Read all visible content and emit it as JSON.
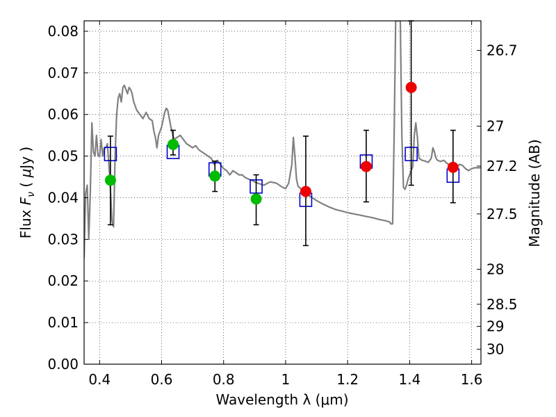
{
  "chart_data": {
    "type": "scatter",
    "xlabel": "Wavelength  λ (μm)",
    "ylabel": "Flux  F_ν  ( μJy )",
    "ylabel_parts": {
      "prefix": "Flux  ",
      "symbol": "F",
      "subscript": "ν",
      "open": "  (  ",
      "unit_mu": "μ",
      "unit_rest": "Jy )"
    },
    "y2label": "Magnitude (AB)",
    "xlim": [
      0.35,
      1.63
    ],
    "ylim": [
      0.0,
      0.0825
    ],
    "grid": true,
    "x_ticks": [
      0.4,
      0.6,
      0.8,
      1.0,
      1.2,
      1.4,
      1.6
    ],
    "x_tick_labels": [
      "0.4",
      "0.6",
      "0.8",
      "1",
      "1.2",
      "1.4",
      "1.6"
    ],
    "y_ticks": [
      0.0,
      0.01,
      0.02,
      0.03,
      0.04,
      0.05,
      0.06,
      0.07,
      0.08
    ],
    "y_tick_labels": [
      "0.00",
      "0.01",
      "0.02",
      "0.03",
      "0.04",
      "0.05",
      "0.06",
      "0.07",
      "0.08"
    ],
    "y2_ticks": [
      {
        "label": "26.7",
        "flux": 0.0754
      },
      {
        "label": "27",
        "flux": 0.0572
      },
      {
        "label": "27.2",
        "flux": 0.0476
      },
      {
        "label": "27.5",
        "flux": 0.0361
      },
      {
        "label": "28",
        "flux": 0.0228
      },
      {
        "label": "28.5",
        "flux": 0.0144
      },
      {
        "label": "29",
        "flux": 0.0091
      },
      {
        "label": "30",
        "flux": 0.0036
      }
    ],
    "colors": {
      "model": "#808080",
      "green": "#00bb00",
      "red": "#ee0000",
      "box": "#0000cc",
      "errorbar": "#000000"
    },
    "series": [
      {
        "kind": "model_spectrum",
        "points": [
          [
            0.35,
            0.0255
          ],
          [
            0.355,
            0.041
          ],
          [
            0.36,
            0.043
          ],
          [
            0.365,
            0.03
          ],
          [
            0.37,
            0.041
          ],
          [
            0.375,
            0.058
          ],
          [
            0.38,
            0.051
          ],
          [
            0.385,
            0.05
          ],
          [
            0.39,
            0.055
          ],
          [
            0.395,
            0.05
          ],
          [
            0.4,
            0.05
          ],
          [
            0.405,
            0.054
          ],
          [
            0.41,
            0.05
          ],
          [
            0.415,
            0.052
          ],
          [
            0.42,
            0.052
          ],
          [
            0.425,
            0.053
          ],
          [
            0.43,
            0.048
          ],
          [
            0.435,
            0.042
          ],
          [
            0.44,
            0.0345
          ],
          [
            0.445,
            0.033
          ],
          [
            0.45,
            0.05
          ],
          [
            0.455,
            0.06
          ],
          [
            0.46,
            0.064
          ],
          [
            0.465,
            0.065
          ],
          [
            0.47,
            0.063
          ],
          [
            0.475,
            0.0665
          ],
          [
            0.48,
            0.067
          ],
          [
            0.485,
            0.066
          ],
          [
            0.49,
            0.065
          ],
          [
            0.495,
            0.0665
          ],
          [
            0.5,
            0.066
          ],
          [
            0.505,
            0.065
          ],
          [
            0.51,
            0.063
          ],
          [
            0.52,
            0.061
          ],
          [
            0.53,
            0.06
          ],
          [
            0.54,
            0.059
          ],
          [
            0.55,
            0.0605
          ],
          [
            0.56,
            0.059
          ],
          [
            0.57,
            0.0585
          ],
          [
            0.575,
            0.056
          ],
          [
            0.58,
            0.0545
          ],
          [
            0.585,
            0.052
          ],
          [
            0.59,
            0.055
          ],
          [
            0.6,
            0.057
          ],
          [
            0.61,
            0.0605
          ],
          [
            0.615,
            0.0615
          ],
          [
            0.62,
            0.061
          ],
          [
            0.63,
            0.057
          ],
          [
            0.64,
            0.054
          ],
          [
            0.65,
            0.0545
          ],
          [
            0.66,
            0.055
          ],
          [
            0.67,
            0.054
          ],
          [
            0.68,
            0.053
          ],
          [
            0.69,
            0.0525
          ],
          [
            0.7,
            0.052
          ],
          [
            0.71,
            0.0525
          ],
          [
            0.72,
            0.0515
          ],
          [
            0.73,
            0.051
          ],
          [
            0.74,
            0.0505
          ],
          [
            0.75,
            0.05
          ],
          [
            0.76,
            0.0495
          ],
          [
            0.77,
            0.048
          ],
          [
            0.78,
            0.049
          ],
          [
            0.79,
            0.048
          ],
          [
            0.8,
            0.047
          ],
          [
            0.81,
            0.0465
          ],
          [
            0.82,
            0.0455
          ],
          [
            0.83,
            0.0465
          ],
          [
            0.84,
            0.046
          ],
          [
            0.85,
            0.0455
          ],
          [
            0.86,
            0.0455
          ],
          [
            0.87,
            0.0448
          ],
          [
            0.88,
            0.0445
          ],
          [
            0.89,
            0.0442
          ],
          [
            0.9,
            0.0438
          ],
          [
            0.91,
            0.0435
          ],
          [
            0.93,
            0.043
          ],
          [
            0.95,
            0.0438
          ],
          [
            0.97,
            0.0435
          ],
          [
            0.99,
            0.0425
          ],
          [
            1.0,
            0.0422
          ],
          [
            1.01,
            0.0435
          ],
          [
            1.02,
            0.048
          ],
          [
            1.025,
            0.0545
          ],
          [
            1.03,
            0.05
          ],
          [
            1.035,
            0.0445
          ],
          [
            1.04,
            0.0428
          ],
          [
            1.06,
            0.0413
          ],
          [
            1.08,
            0.0403
          ],
          [
            1.1,
            0.0393
          ],
          [
            1.12,
            0.0385
          ],
          [
            1.14,
            0.0378
          ],
          [
            1.16,
            0.0372
          ],
          [
            1.18,
            0.0368
          ],
          [
            1.2,
            0.0364
          ],
          [
            1.22,
            0.0361
          ],
          [
            1.24,
            0.0358
          ],
          [
            1.26,
            0.0355
          ],
          [
            1.28,
            0.0352
          ],
          [
            1.3,
            0.0348
          ],
          [
            1.32,
            0.0345
          ],
          [
            1.335,
            0.0342
          ],
          [
            1.34,
            0.0337
          ],
          [
            1.345,
            0.0337
          ],
          [
            1.35,
            0.055
          ],
          [
            1.355,
            0.0825
          ],
          [
            1.37,
            0.0825
          ],
          [
            1.375,
            0.055
          ],
          [
            1.38,
            0.0425
          ],
          [
            1.385,
            0.042
          ],
          [
            1.39,
            0.043
          ],
          [
            1.395,
            0.0445
          ],
          [
            1.4,
            0.0455
          ],
          [
            1.405,
            0.0465
          ],
          [
            1.41,
            0.0475
          ],
          [
            1.415,
            0.055
          ],
          [
            1.42,
            0.058
          ],
          [
            1.425,
            0.0545
          ],
          [
            1.43,
            0.0495
          ],
          [
            1.44,
            0.049
          ],
          [
            1.45,
            0.0488
          ],
          [
            1.46,
            0.0485
          ],
          [
            1.47,
            0.0495
          ],
          [
            1.475,
            0.052
          ],
          [
            1.48,
            0.051
          ],
          [
            1.485,
            0.0495
          ],
          [
            1.49,
            0.049
          ],
          [
            1.5,
            0.0487
          ],
          [
            1.51,
            0.049
          ],
          [
            1.52,
            0.0483
          ],
          [
            1.53,
            0.0478
          ],
          [
            1.54,
            0.0475
          ],
          [
            1.55,
            0.047
          ],
          [
            1.56,
            0.048
          ],
          [
            1.57,
            0.0478
          ],
          [
            1.58,
            0.047
          ],
          [
            1.59,
            0.0465
          ],
          [
            1.6,
            0.047
          ],
          [
            1.61,
            0.0472
          ],
          [
            1.63,
            0.0472
          ]
        ]
      },
      {
        "kind": "model_photometry_boxes",
        "points": [
          [
            0.435,
            0.0505
          ],
          [
            0.637,
            0.051
          ],
          [
            0.772,
            0.0468
          ],
          [
            0.905,
            0.0427
          ],
          [
            1.065,
            0.0395
          ],
          [
            1.26,
            0.0487
          ],
          [
            1.405,
            0.0505
          ],
          [
            1.54,
            0.0453
          ]
        ]
      },
      {
        "kind": "observed_green",
        "points": [
          {
            "x": 0.435,
            "y": 0.0442,
            "lo": 0.0335,
            "hi": 0.0548
          },
          {
            "x": 0.637,
            "y": 0.0528,
            "lo": 0.0503,
            "hi": 0.0562
          },
          {
            "x": 0.772,
            "y": 0.0452,
            "lo": 0.0415,
            "hi": 0.0488
          },
          {
            "x": 0.905,
            "y": 0.0397,
            "lo": 0.0335,
            "hi": 0.0455
          }
        ]
      },
      {
        "kind": "observed_red",
        "points": [
          {
            "x": 1.065,
            "y": 0.0415,
            "lo": 0.0285,
            "hi": 0.0548
          },
          {
            "x": 1.26,
            "y": 0.0475,
            "lo": 0.039,
            "hi": 0.0562
          },
          {
            "x": 1.405,
            "y": 0.0665,
            "lo": 0.043,
            "hi": 0.0825
          },
          {
            "x": 1.54,
            "y": 0.0473,
            "lo": 0.0388,
            "hi": 0.0562
          }
        ]
      }
    ]
  }
}
